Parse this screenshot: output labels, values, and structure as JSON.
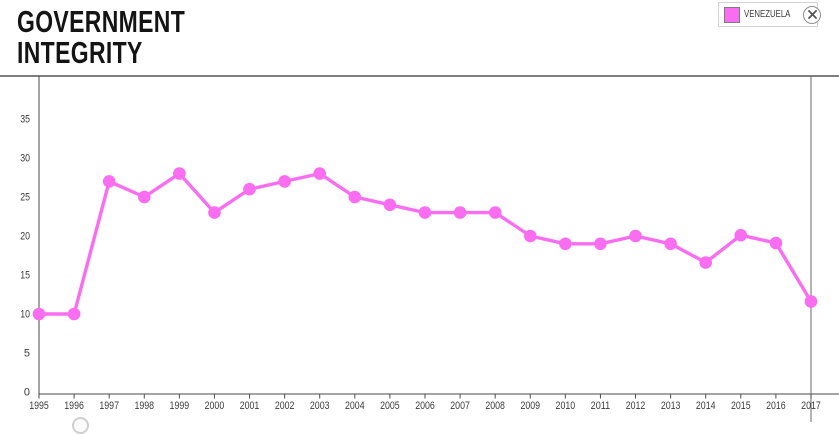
{
  "header": {
    "title_line1": "GOVERNMENT",
    "title_line2": "INTEGRITY"
  },
  "legend": {
    "label": "VENEZUELA",
    "swatch_color": "#F96DF0",
    "close_icon": "x-in-circle"
  },
  "colors": {
    "series": "#F96DF0",
    "axis": "#4a4a4a",
    "right_border": "#686868",
    "tick_text": "#3c3c3c"
  },
  "chart_data": {
    "type": "line",
    "title": "Government Integrity",
    "xlabel": "",
    "ylabel": "",
    "ylim": [
      0,
      39
    ],
    "y_tick_step": 5,
    "y_ticks": [
      0,
      5,
      10,
      15,
      20,
      25,
      30,
      35
    ],
    "x_ticks": [
      "1995",
      "1996",
      "1997",
      "1998",
      "1999",
      "2000",
      "2001",
      "2002",
      "2003",
      "2004",
      "2005",
      "2006",
      "2007",
      "2008",
      "2009",
      "2010",
      "2011",
      "2012",
      "2013",
      "2014",
      "2015",
      "2016",
      "2017"
    ],
    "grid": "off",
    "legend_position": "top-right",
    "series": [
      {
        "name": "VENEZUELA",
        "color": "#F96DF0",
        "x": [
          1995,
          1996,
          1997,
          1998,
          1999,
          2000,
          2001,
          2002,
          2003,
          2004,
          2005,
          2006,
          2007,
          2008,
          2009,
          2010,
          2011,
          2012,
          2013,
          2014,
          2015,
          2016,
          2017
        ],
        "values": [
          10,
          10,
          27,
          25,
          28,
          23,
          26,
          27,
          28,
          25,
          24,
          23,
          23,
          23,
          20,
          19,
          19,
          20,
          19,
          16.6,
          20.1,
          19.1,
          11.6
        ]
      }
    ]
  }
}
